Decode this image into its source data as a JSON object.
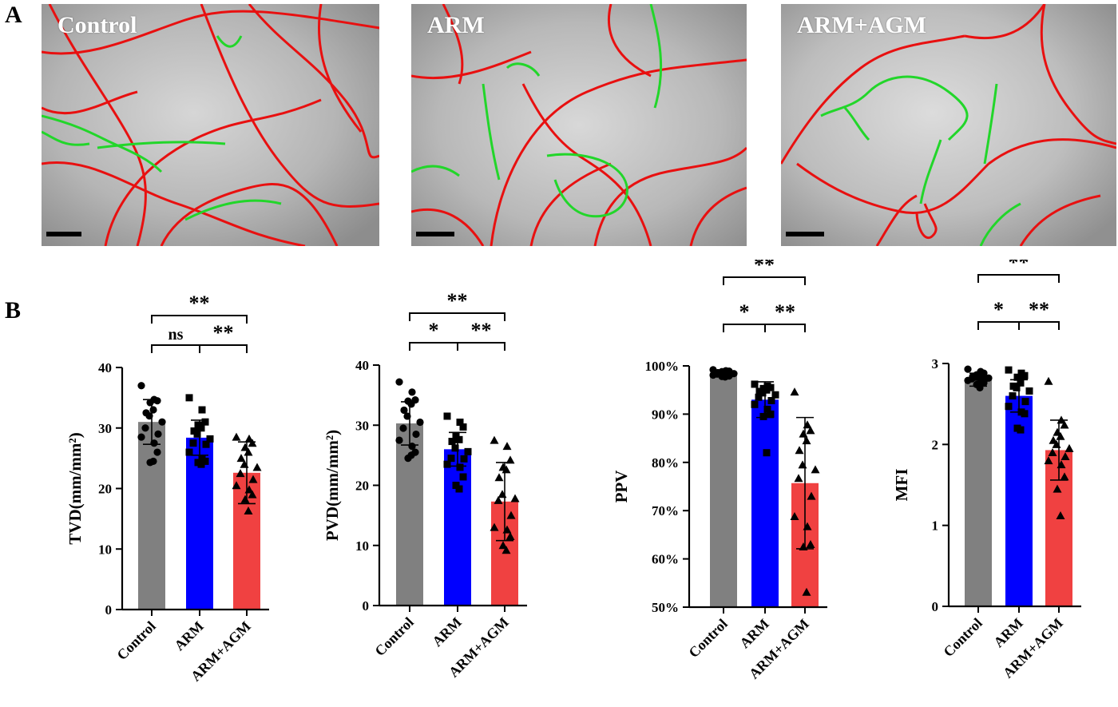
{
  "panel_labels": {
    "a": "A",
    "b": "B"
  },
  "micrographs": [
    {
      "label": "Control"
    },
    {
      "label": "ARM"
    },
    {
      "label": "ARM+AGM"
    }
  ],
  "colors": {
    "control": "#808080",
    "arm": "#0000ff",
    "arm_agm": "#f04141",
    "perfused_vessel": "#e81010",
    "nonperfused_vessel": "#22d62a"
  },
  "chart_data": [
    {
      "type": "bar",
      "title": "",
      "ylabel": "TVD(mm/mm²)",
      "ylim": [
        0,
        40
      ],
      "yticks": [
        "0",
        "10",
        "20",
        "30",
        "40"
      ],
      "categories": [
        "Control",
        "ARM",
        "ARM+AGM"
      ],
      "values": [
        31,
        28.4,
        22.6
      ],
      "errors": [
        3.7,
        2.9,
        5.1
      ],
      "points": [
        [
          37,
          34.7,
          34.5,
          34.2,
          33,
          32.5,
          32,
          31,
          30,
          29,
          28.5,
          27.5,
          26,
          24.3,
          24.5
        ],
        [
          35,
          33,
          31,
          30.5,
          30,
          29.5,
          29,
          28.2,
          27.5,
          27.3,
          26,
          25,
          24.5,
          24.3,
          24
        ],
        [
          28.5,
          28.2,
          27.5,
          26.8,
          26,
          25,
          24,
          23.5,
          22.5,
          21.5,
          20.5,
          19.8,
          19,
          18.2,
          16.3
        ]
      ],
      "markers": [
        "circle",
        "square",
        "triangle"
      ],
      "significance": [
        {
          "from": 0,
          "to": 1,
          "label": "ns",
          "level": 1
        },
        {
          "from": 1,
          "to": 2,
          "label": "**",
          "level": 1
        },
        {
          "from": 0,
          "to": 2,
          "label": "**",
          "level": 2
        }
      ]
    },
    {
      "type": "bar",
      "title": "",
      "ylabel": "PVD(mm/mm²)",
      "ylim": [
        0,
        40
      ],
      "yticks": [
        "0",
        "10",
        "20",
        "30",
        "40"
      ],
      "categories": [
        "Control",
        "ARM",
        "ARM+AGM"
      ],
      "values": [
        30.3,
        26,
        17.3
      ],
      "errors": [
        3.6,
        2.8,
        6.5
      ],
      "points": [
        [
          37.2,
          35.5,
          34.2,
          34,
          33.5,
          32.5,
          31.5,
          30.5,
          29.5,
          28.5,
          27.5,
          26.5,
          25.5,
          24.5,
          25
        ],
        [
          31.5,
          30.5,
          29.7,
          28.3,
          27.6,
          27.3,
          26.2,
          25.6,
          24.5,
          24.4,
          23.5,
          23,
          21.4,
          20,
          19.4
        ],
        [
          27.5,
          26.5,
          24.2,
          23,
          22.6,
          21.3,
          18.5,
          17.8,
          17.5,
          15,
          13,
          12.6,
          11.5,
          10,
          9.2
        ]
      ],
      "markers": [
        "circle",
        "square",
        "triangle"
      ],
      "significance": [
        {
          "from": 0,
          "to": 1,
          "label": "*",
          "level": 1
        },
        {
          "from": 1,
          "to": 2,
          "label": "**",
          "level": 1
        },
        {
          "from": 0,
          "to": 2,
          "label": "**",
          "level": 2
        }
      ]
    },
    {
      "type": "bar",
      "title": "",
      "ylabel": "PPV",
      "ylim": [
        50,
        100
      ],
      "yticks": [
        "50%",
        "60%",
        "70%",
        "80%",
        "90%",
        "100%"
      ],
      "categories": [
        "Control",
        "ARM",
        "ARM+AGM"
      ],
      "values": [
        98.5,
        93,
        75.7
      ],
      "errors": [
        0.6,
        3.7,
        13.6
      ],
      "points": [
        [
          99.2,
          99,
          98.9,
          98.8,
          98.7,
          98.6,
          98.5,
          98.4,
          98.3,
          98.2,
          98.1,
          98,
          97.9,
          97.8,
          97.7
        ],
        [
          96.2,
          95.8,
          95.5,
          95.3,
          95,
          94.7,
          94.4,
          94,
          93.5,
          92.8,
          92,
          91,
          90,
          89.5,
          82
        ],
        [
          94.6,
          87.8,
          86.6,
          85.9,
          84.5,
          82.5,
          79.5,
          78.5,
          76.7,
          73,
          68.8,
          66.7,
          63,
          62.5,
          53.1
        ]
      ],
      "markers": [
        "circle",
        "square",
        "triangle"
      ],
      "significance": [
        {
          "from": 0,
          "to": 1,
          "label": "*",
          "level": 1
        },
        {
          "from": 1,
          "to": 2,
          "label": "**",
          "level": 1
        },
        {
          "from": 0,
          "to": 2,
          "label": "**",
          "level": 2
        }
      ]
    },
    {
      "type": "bar",
      "title": "",
      "ylabel": "MFI",
      "ylim": [
        0,
        3
      ],
      "yticks": [
        "0",
        "1",
        "2",
        "3"
      ],
      "categories": [
        "Control",
        "ARM",
        "ARM+AGM"
      ],
      "values": [
        2.8,
        2.6,
        1.93
      ],
      "errors": [
        0.08,
        0.2,
        0.37
      ],
      "points": [
        [
          2.93,
          2.9,
          2.88,
          2.86,
          2.85,
          2.84,
          2.83,
          2.82,
          2.81,
          2.8,
          2.79,
          2.78,
          2.76,
          2.74,
          2.7
        ],
        [
          2.92,
          2.88,
          2.85,
          2.83,
          2.76,
          2.72,
          2.7,
          2.66,
          2.6,
          2.53,
          2.47,
          2.4,
          2.38,
          2.2,
          2.18
        ],
        [
          2.78,
          2.3,
          2.24,
          2.15,
          2.1,
          2.05,
          2.0,
          1.95,
          1.9,
          1.85,
          1.8,
          1.75,
          1.6,
          1.45,
          1.12
        ]
      ],
      "markers": [
        "circle",
        "square",
        "triangle"
      ],
      "significance": [
        {
          "from": 0,
          "to": 1,
          "label": "*",
          "level": 1
        },
        {
          "from": 1,
          "to": 2,
          "label": "**",
          "level": 1
        },
        {
          "from": 0,
          "to": 2,
          "label": "**",
          "level": 2
        }
      ]
    }
  ]
}
